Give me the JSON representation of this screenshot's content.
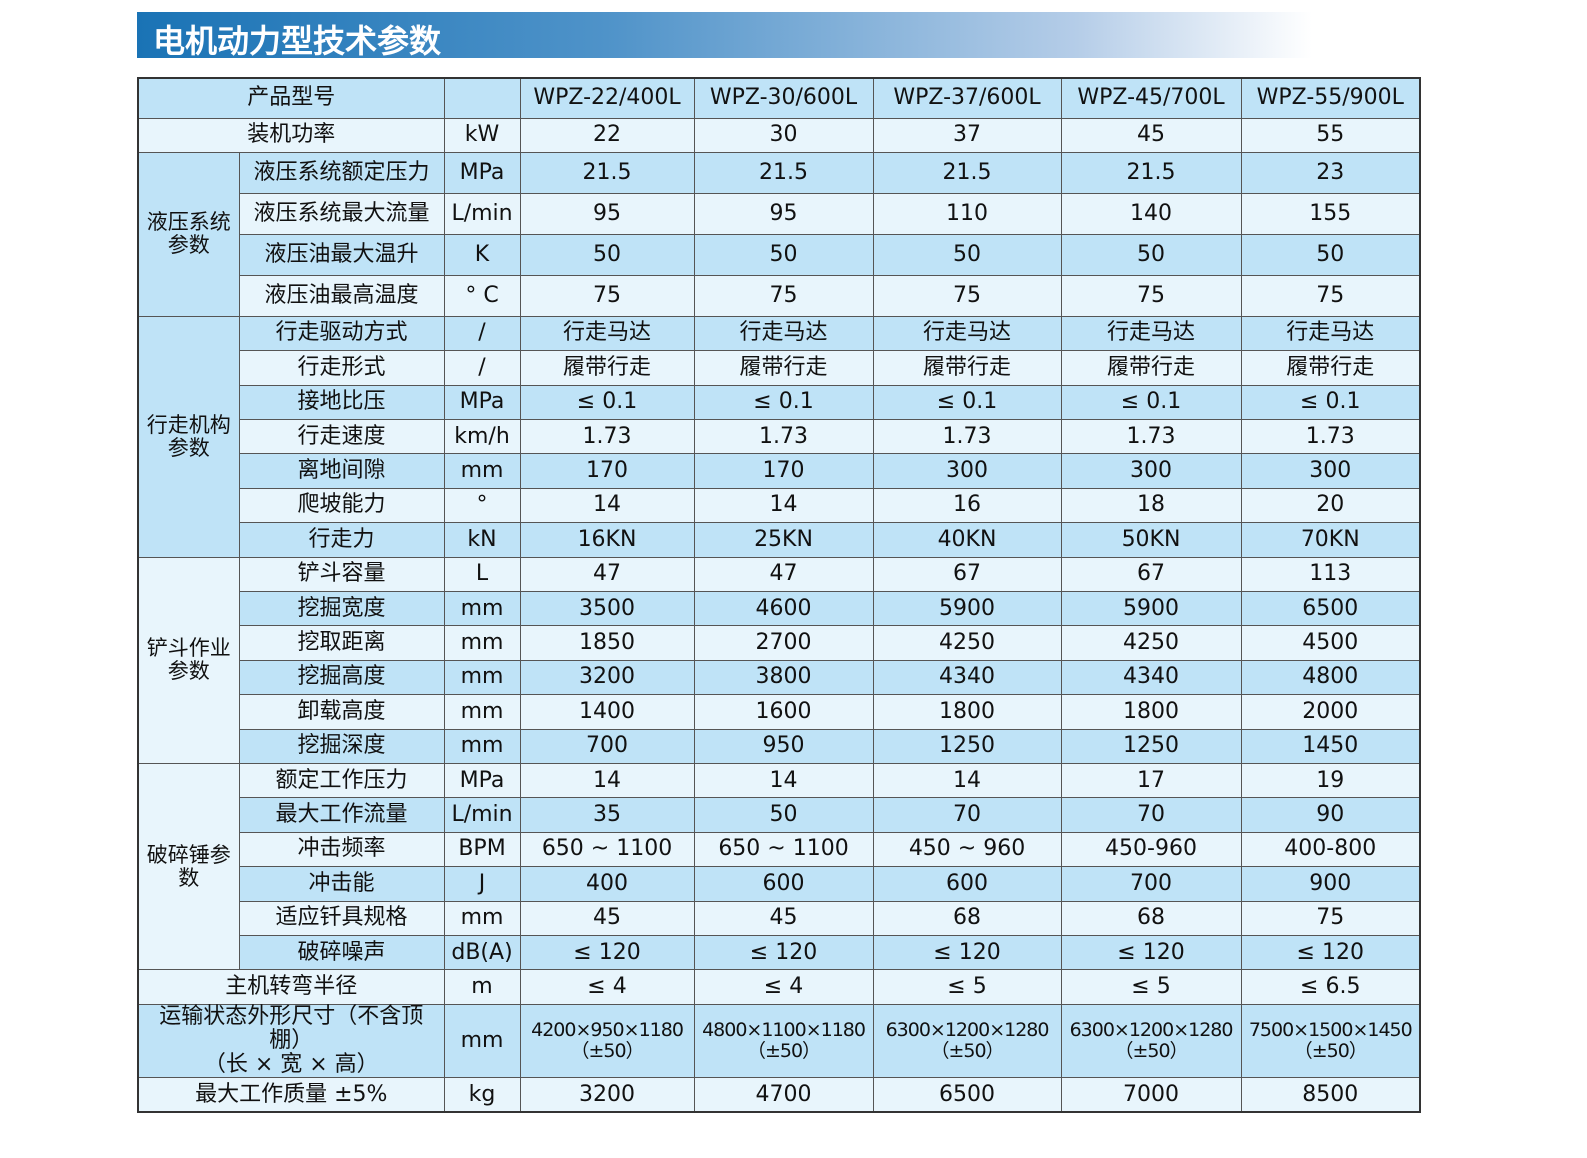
{
  "title": "电机动力型技术参数",
  "table": {
    "header": {
      "label": "产品型号",
      "models": [
        "WPZ-22/400L",
        "WPZ-30/600L",
        "WPZ-37/600L",
        "WPZ-45/700L",
        "WPZ-55/900L"
      ]
    },
    "sections": [
      {
        "rows": [
          {
            "param": "装机功率",
            "unit": "kW",
            "values": [
              "22",
              "30",
              "37",
              "45",
              "55"
            ]
          }
        ]
      },
      {
        "group": "液压系统参数",
        "rows": [
          {
            "param": "液压系统额定压力",
            "unit": "MPa",
            "values": [
              "21.5",
              "21.5",
              "21.5",
              "21.5",
              "23"
            ]
          },
          {
            "param": "液压系统最大流量",
            "unit": "L/min",
            "values": [
              "95",
              "95",
              "110",
              "140",
              "155"
            ]
          },
          {
            "param": "液压油最大温升",
            "unit": "K",
            "values": [
              "50",
              "50",
              "50",
              "50",
              "50"
            ]
          },
          {
            "param": "液压油最高温度",
            "unit": "° C",
            "values": [
              "75",
              "75",
              "75",
              "75",
              "75"
            ]
          }
        ]
      },
      {
        "group": "行走机构参数",
        "rows": [
          {
            "param": "行走驱动方式",
            "unit": "/",
            "values": [
              "行走马达",
              "行走马达",
              "行走马达",
              "行走马达",
              "行走马达"
            ]
          },
          {
            "param": "行走形式",
            "unit": "/",
            "values": [
              "履带行走",
              "履带行走",
              "履带行走",
              "履带行走",
              "履带行走"
            ]
          },
          {
            "param": "接地比压",
            "unit": "MPa",
            "values": [
              "≤ 0.1",
              "≤ 0.1",
              "≤ 0.1",
              "≤ 0.1",
              "≤ 0.1"
            ]
          },
          {
            "param": "行走速度",
            "unit": "km/h",
            "values": [
              "1.73",
              "1.73",
              "1.73",
              "1.73",
              "1.73"
            ]
          },
          {
            "param": "离地间隙",
            "unit": "mm",
            "values": [
              "170",
              "170",
              "300",
              "300",
              "300"
            ]
          },
          {
            "param": "爬坡能力",
            "unit": "°",
            "values": [
              "14",
              "14",
              "16",
              "18",
              "20"
            ]
          },
          {
            "param": "行走力",
            "unit": "kN",
            "values": [
              "16KN",
              "25KN",
              "40KN",
              "50KN",
              "70KN"
            ]
          }
        ]
      },
      {
        "group": "铲斗作业参数",
        "rows": [
          {
            "param": "铲斗容量",
            "unit": "L",
            "values": [
              "47",
              "47",
              "67",
              "67",
              "113"
            ]
          },
          {
            "param": "挖掘宽度",
            "unit": "mm",
            "values": [
              "3500",
              "4600",
              "5900",
              "5900",
              "6500"
            ]
          },
          {
            "param": "挖取距离",
            "unit": "mm",
            "values": [
              "1850",
              "2700",
              "4250",
              "4250",
              "4500"
            ]
          },
          {
            "param": "挖掘高度",
            "unit": "mm",
            "values": [
              "3200",
              "3800",
              "4340",
              "4340",
              "4800"
            ]
          },
          {
            "param": "卸载高度",
            "unit": "mm",
            "values": [
              "1400",
              "1600",
              "1800",
              "1800",
              "2000"
            ]
          },
          {
            "param": "挖掘深度",
            "unit": "mm",
            "values": [
              "700",
              "950",
              "1250",
              "1250",
              "1450"
            ]
          }
        ]
      },
      {
        "group": "破碎锤参数",
        "rows": [
          {
            "param": "额定工作压力",
            "unit": "MPa",
            "values": [
              "14",
              "14",
              "14",
              "17",
              "19"
            ]
          },
          {
            "param": "最大工作流量",
            "unit": "L/min",
            "values": [
              "35",
              "50",
              "70",
              "70",
              "90"
            ]
          },
          {
            "param": "冲击频率",
            "unit": "BPM",
            "values": [
              "650 ~ 1100",
              "650 ~ 1100",
              "450 ~ 960",
              "450-960",
              "400-800"
            ]
          },
          {
            "param": "冲击能",
            "unit": "J",
            "values": [
              "400",
              "600",
              "600",
              "700",
              "900"
            ]
          },
          {
            "param": "适应钎具规格",
            "unit": "mm",
            "values": [
              "45",
              "45",
              "68",
              "68",
              "75"
            ]
          },
          {
            "param": "破碎噪声",
            "unit": "dB(A)",
            "values": [
              "≤ 120",
              "≤ 120",
              "≤ 120",
              "≤ 120",
              "≤ 120"
            ]
          }
        ]
      },
      {
        "rows": [
          {
            "param": "主机转弯半径",
            "unit": "m",
            "values": [
              "≤ 4",
              "≤ 4",
              "≤ 5",
              "≤ 5",
              "≤ 6.5"
            ]
          },
          {
            "param": [
              "运输状态外形尺寸（不含顶棚）",
              "（长 × 宽 × 高）"
            ],
            "unit": "mm",
            "values": [
              [
                "4200×950×1180",
                "（±50）"
              ],
              [
                "4800×1100×1180",
                "（±50）"
              ],
              [
                "6300×1200×1280",
                "（±50）"
              ],
              [
                "6300×1200×1280",
                "（±50）"
              ],
              [
                "7500×1500×1450",
                "（±50）"
              ]
            ]
          },
          {
            "param": "最大工作质量 ±5%",
            "unit": "kg",
            "values": [
              "3200",
              "4700",
              "6500",
              "7000",
              "8500"
            ]
          }
        ]
      }
    ]
  }
}
